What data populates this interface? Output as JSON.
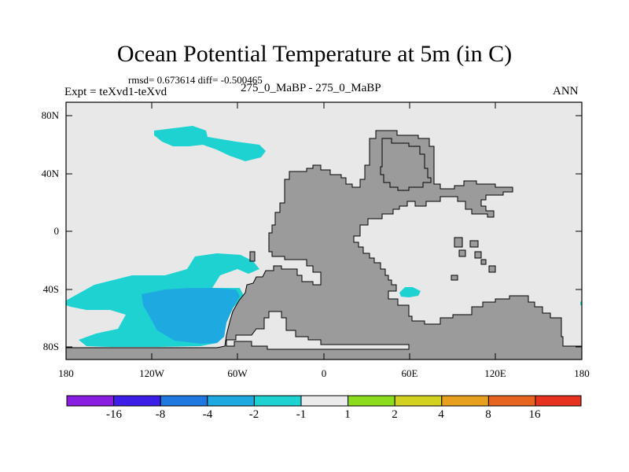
{
  "title": "Ocean Potential Temperature at 5m (in C)",
  "stats": "rmsd= 0.673614 diff= -0.500465",
  "expt": "Expt = teXvd1-teXvd",
  "cases": "275_0_MaBP - 275_0_MaBP",
  "season": "ANN",
  "lat_labels": [
    "80N",
    "40N",
    "0",
    "40S",
    "80S"
  ],
  "lon_labels": [
    "180",
    "120W",
    "60W",
    "0",
    "60E",
    "120E",
    "180"
  ],
  "colorbar": {
    "labels": [
      "-16",
      "-8",
      "-4",
      "-2",
      "-1",
      "1",
      "2",
      "4",
      "8",
      "16"
    ],
    "colors": [
      "#8a1ee0",
      "#3c1ee6",
      "#1e78e0",
      "#1eaae0",
      "#1ed2d2",
      "#ebebeb",
      "#8cdc1e",
      "#d2d21e",
      "#e6a01e",
      "#e6641e",
      "#e6321e"
    ]
  },
  "colors": {
    "ocean": "#e8e8e8",
    "land": "#9b9b9b",
    "anomaly_light": "#1ed2d2",
    "anomaly_mid": "#1eaae0"
  }
}
